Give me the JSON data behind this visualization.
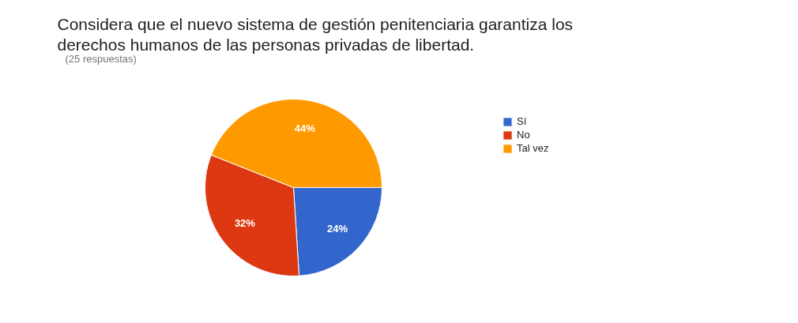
{
  "chart_data": {
    "type": "pie",
    "title": "Considera que el nuevo sistema de gestión penitenciaria garantiza los derechos humanos de las personas privadas de libertad.",
    "subtitle": "(25 respuestas)",
    "categories": [
      "Sí",
      "No",
      "Tal vez"
    ],
    "values": [
      24,
      32,
      44
    ],
    "colors": [
      "#3366cc",
      "#dc3912",
      "#ff9900"
    ],
    "value_labels": [
      "24%",
      "32%",
      "44%"
    ],
    "legend": "right"
  }
}
